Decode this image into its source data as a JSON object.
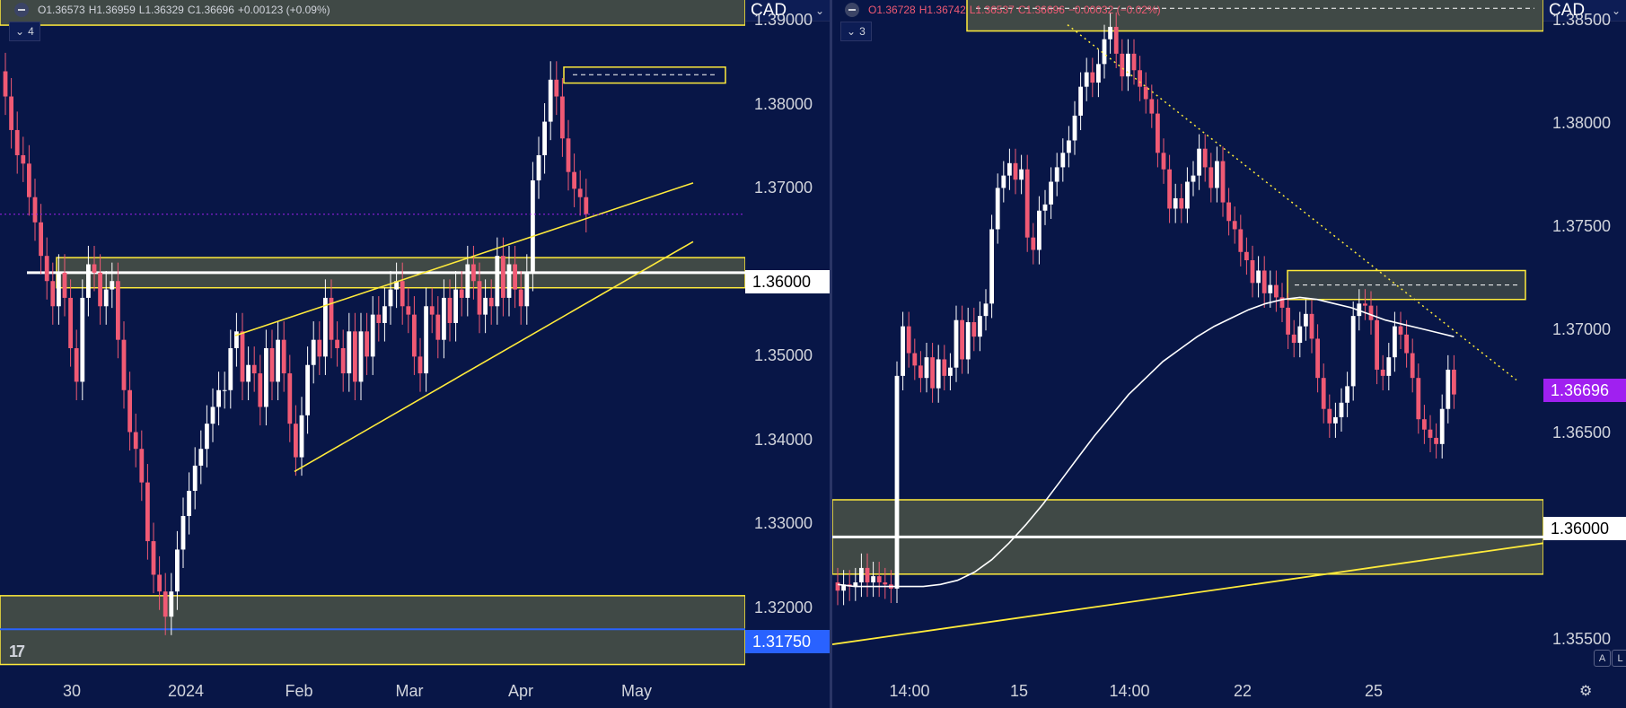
{
  "left": {
    "ohlc": {
      "o": "O1.36573",
      "h": "H1.36959",
      "l": "L1.36329",
      "c": "C1.36696",
      "chg": "+0.00123 (+0.09%)"
    },
    "indicator_count": "4",
    "currency": "CAD",
    "price_ticks": [
      "1.39000",
      "1.38000",
      "1.37000",
      "1.36000",
      "1.35000",
      "1.34000",
      "1.33000",
      "1.32000"
    ],
    "label_1_36000": "1.36000",
    "label_1_31750": "1.31750",
    "time_ticks": [
      "30",
      "2024",
      "Feb",
      "Mar",
      "Apr",
      "May"
    ]
  },
  "right": {
    "ohlc": {
      "o": "O1.36728",
      "h": "H1.36742",
      "l": "L1.36537",
      "c": "C1.36696",
      "chg": "−0.00032 (−0.02%)"
    },
    "indicator_count": "3",
    "currency": "CAD",
    "price_ticks": [
      "1.38500",
      "1.38000",
      "1.37500",
      "1.37000",
      "1.36500",
      "1.36000",
      "1.35500"
    ],
    "label_1_36000": "1.36000",
    "label_last": "1.36696",
    "time_ticks": [
      "14:00",
      "15",
      "14:00",
      "22",
      "25"
    ],
    "axis_buttons": [
      "A",
      "L"
    ]
  },
  "colors": {
    "background": "#081647",
    "up": "#ffffff",
    "down": "#f05a74",
    "zone_line": "#ffeb3b",
    "zone_fill": "#4a5247",
    "last_price": "#a020f0",
    "blue_line": "#2962ff"
  },
  "chart_data": [
    {
      "type": "candlestick",
      "title": "",
      "currency": "CAD",
      "ylim": [
        1.3125,
        1.3925
      ],
      "x_labels": [
        "30",
        "2024",
        "Feb",
        "Mar",
        "Apr",
        "May"
      ],
      "support_zones": [
        [
          1.3582,
          1.3618
        ],
        [
          1.3895,
          1.3935
        ],
        [
          1.3133,
          1.3215
        ]
      ],
      "key_level": 1.36,
      "lower_blue_level": 1.3175,
      "top_zone": [
        1.3826,
        1.3845
      ],
      "close_series": [
        1.381,
        1.377,
        1.374,
        1.373,
        1.369,
        1.366,
        1.362,
        1.359,
        1.356,
        1.36,
        1.357,
        1.351,
        1.347,
        1.357,
        1.361,
        1.36,
        1.356,
        1.358,
        1.359,
        1.352,
        1.346,
        1.341,
        1.339,
        1.335,
        1.328,
        1.324,
        1.322,
        1.319,
        1.322,
        1.327,
        1.331,
        1.334,
        1.337,
        1.339,
        1.342,
        1.344,
        1.346,
        1.346,
        1.351,
        1.353,
        1.347,
        1.349,
        1.348,
        1.344,
        1.351,
        1.347,
        1.352,
        1.348,
        1.342,
        1.338,
        1.343,
        1.349,
        1.352,
        1.35,
        1.357,
        1.352,
        1.351,
        1.348,
        1.353,
        1.347,
        1.353,
        1.35,
        1.355,
        1.354,
        1.356,
        1.358,
        1.359,
        1.356,
        1.355,
        1.35,
        1.348,
        1.356,
        1.355,
        1.352,
        1.357,
        1.354,
        1.358,
        1.357,
        1.361,
        1.359,
        1.355,
        1.357,
        1.356,
        1.362,
        1.357,
        1.361,
        1.358,
        1.356,
        1.36,
        1.371,
        1.374,
        1.378,
        1.383,
        1.381,
        1.376,
        1.372,
        1.37,
        1.369,
        1.367
      ],
      "trendlines": [
        {
          "from": [
            1.3525,
            "Jan 16"
          ],
          "to": [
            1.3705,
            "May 10"
          ]
        },
        {
          "from": [
            1.3365,
            "Feb 5"
          ],
          "to": [
            1.3635,
            "May 10"
          ]
        }
      ]
    },
    {
      "type": "candlestick",
      "title": "",
      "currency": "CAD",
      "ylim": [
        1.3535,
        1.386
      ],
      "x_labels": [
        "14:00",
        "15",
        "14:00",
        "22",
        "25"
      ],
      "zones": [
        [
          1.3845,
          1.3866
        ],
        [
          1.3715,
          1.3729
        ],
        [
          1.3582,
          1.3618
        ]
      ],
      "key_level": 1.36,
      "last_price": 1.36696,
      "close_series": [
        1.3574,
        1.3577,
        1.3576,
        1.3578,
        1.3585,
        1.3578,
        1.3581,
        1.3578,
        1.3577,
        1.3575,
        1.3678,
        1.3702,
        1.3689,
        1.3683,
        1.3677,
        1.3687,
        1.3672,
        1.3686,
        1.3678,
        1.3682,
        1.3705,
        1.3686,
        1.3704,
        1.3697,
        1.3707,
        1.3713,
        1.3749,
        1.3769,
        1.3775,
        1.3781,
        1.3773,
        1.3778,
        1.3745,
        1.3739,
        1.3758,
        1.3761,
        1.3772,
        1.3779,
        1.3786,
        1.3792,
        1.3804,
        1.3818,
        1.3825,
        1.382,
        1.3829,
        1.3841,
        1.3847,
        1.3834,
        1.3823,
        1.3834,
        1.3826,
        1.3818,
        1.3812,
        1.3805,
        1.3786,
        1.3778,
        1.3759,
        1.3764,
        1.3759,
        1.3772,
        1.3775,
        1.3788,
        1.3779,
        1.3769,
        1.3782,
        1.3762,
        1.3753,
        1.3749,
        1.3738,
        1.3734,
        1.3723,
        1.3729,
        1.3718,
        1.3722,
        1.3716,
        1.3711,
        1.3698,
        1.3694,
        1.3702,
        1.3708,
        1.3696,
        1.3677,
        1.3662,
        1.3655,
        1.3658,
        1.3665,
        1.3673,
        1.3707,
        1.3713,
        1.3712,
        1.3705,
        1.3681,
        1.3678,
        1.3687,
        1.3702,
        1.3698,
        1.3689,
        1.3677,
        1.3657,
        1.3652,
        1.3648,
        1.3645,
        1.3662,
        1.3681,
        1.3669
      ],
      "moving_average": [
        1.3577,
        1.3576,
        1.3576,
        1.3576,
        1.3576,
        1.3576,
        1.3577,
        1.3579,
        1.3583,
        1.3589,
        1.3597,
        1.3606,
        1.3616,
        1.3627,
        1.3638,
        1.3649,
        1.3659,
        1.3669,
        1.3677,
        1.3685,
        1.3691,
        1.3697,
        1.3702,
        1.3706,
        1.371,
        1.3713,
        1.3715,
        1.3716,
        1.3715,
        1.3713,
        1.3711,
        1.3708,
        1.3705,
        1.3703,
        1.3701,
        1.3699,
        1.3697
      ],
      "trendlines": [
        {
          "from": [
            1.3848,
            "peak"
          ],
          "to": [
            1.3676,
            "end"
          ],
          "style": "dotted"
        },
        {
          "from": [
            1.3548,
            "start"
          ],
          "to": [
            1.3597,
            "end"
          ]
        }
      ]
    }
  ]
}
